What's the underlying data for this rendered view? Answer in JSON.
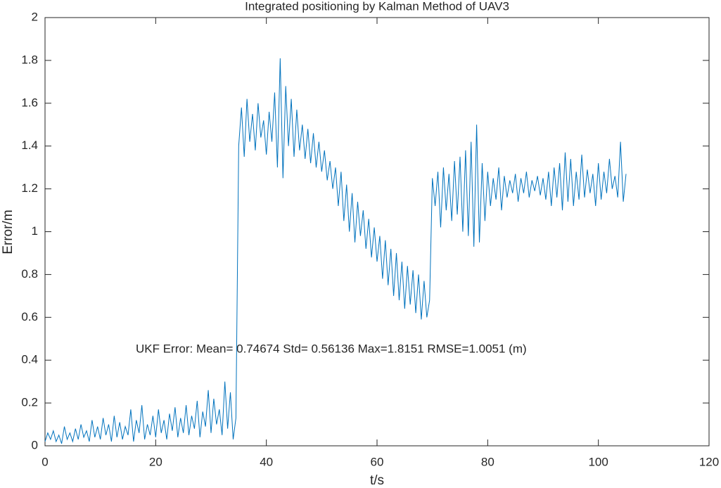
{
  "chart_data": {
    "type": "line",
    "title": "Integrated positioning by Kalman Method of UAV3",
    "xlabel": "t/s",
    "ylabel": "Error/m",
    "annotation": "UKF  Error: Mean= 0.74674 Std= 0.56136 Max=1.8151 RMSE=1.0051 (m)",
    "xlim": [
      0,
      120
    ],
    "ylim": [
      0,
      2
    ],
    "xticks": [
      0,
      20,
      40,
      60,
      80,
      100,
      120
    ],
    "yticks": [
      0,
      0.2,
      0.4,
      0.6,
      0.8,
      1,
      1.2,
      1.4,
      1.6,
      1.8,
      2
    ],
    "color": "#0072bd",
    "x": [
      0,
      0.5,
      1,
      1.5,
      2,
      2.5,
      3,
      3.5,
      4,
      4.5,
      5,
      5.5,
      6,
      6.5,
      7,
      7.5,
      8,
      8.5,
      9,
      9.5,
      10,
      10.5,
      11,
      11.5,
      12,
      12.5,
      13,
      13.5,
      14,
      14.5,
      15,
      15.5,
      16,
      16.5,
      17,
      17.5,
      18,
      18.5,
      19,
      19.5,
      20,
      20.5,
      21,
      21.5,
      22,
      22.5,
      23,
      23.5,
      24,
      24.5,
      25,
      25.5,
      26,
      26.5,
      27,
      27.5,
      28,
      28.5,
      29,
      29.5,
      30,
      30.5,
      31,
      31.5,
      32,
      32.5,
      33,
      33.5,
      34,
      34.5,
      35,
      35.5,
      36,
      36.5,
      37,
      37.5,
      38,
      38.5,
      39,
      39.5,
      40,
      40.5,
      41,
      41.5,
      42,
      42.5,
      43,
      43.5,
      44,
      44.5,
      45,
      45.5,
      46,
      46.5,
      47,
      47.5,
      48,
      48.5,
      49,
      49.5,
      50,
      50.5,
      51,
      51.5,
      52,
      52.5,
      53,
      53.5,
      54,
      54.5,
      55,
      55.5,
      56,
      56.5,
      57,
      57.5,
      58,
      58.5,
      59,
      59.5,
      60,
      60.5,
      61,
      61.5,
      62,
      62.5,
      63,
      63.5,
      64,
      64.5,
      65,
      65.5,
      66,
      66.5,
      67,
      67.5,
      68,
      68.5,
      69,
      69.5,
      70,
      70.5,
      71,
      71.5,
      72,
      72.5,
      73,
      73.5,
      74,
      74.5,
      75,
      75.5,
      76,
      76.5,
      77,
      77.5,
      78,
      78.5,
      79,
      79.5,
      80,
      80.5,
      81,
      81.5,
      82,
      82.5,
      83,
      83.5,
      84,
      84.5,
      85,
      85.5,
      86,
      86.5,
      87,
      87.5,
      88,
      88.5,
      89,
      89.5,
      90,
      90.5,
      91,
      91.5,
      92,
      92.5,
      93,
      93.5,
      94,
      94.5,
      95,
      95.5,
      96,
      96.5,
      97,
      97.5,
      98,
      98.5,
      99,
      99.5,
      100,
      100.5,
      101,
      101.5,
      102,
      102.5,
      103,
      103.5,
      104,
      104.5,
      105
    ],
    "values": [
      0.02,
      0.06,
      0.03,
      0.07,
      0.02,
      0.05,
      0.01,
      0.09,
      0.03,
      0.06,
      0.02,
      0.08,
      0.03,
      0.1,
      0.04,
      0.07,
      0.02,
      0.12,
      0.04,
      0.09,
      0.03,
      0.13,
      0.05,
      0.1,
      0.02,
      0.14,
      0.04,
      0.11,
      0.03,
      0.09,
      0.05,
      0.17,
      0.02,
      0.12,
      0.06,
      0.19,
      0.03,
      0.1,
      0.05,
      0.14,
      0.04,
      0.17,
      0.06,
      0.12,
      0.03,
      0.15,
      0.07,
      0.18,
      0.04,
      0.13,
      0.06,
      0.19,
      0.05,
      0.14,
      0.08,
      0.21,
      0.04,
      0.16,
      0.09,
      0.26,
      0.06,
      0.22,
      0.1,
      0.17,
      0.05,
      0.3,
      0.08,
      0.25,
      0.03,
      0.13,
      1.4,
      1.58,
      1.35,
      1.62,
      1.42,
      1.55,
      1.38,
      1.6,
      1.44,
      1.52,
      1.36,
      1.56,
      1.42,
      1.65,
      1.3,
      1.81,
      1.25,
      1.68,
      1.4,
      1.62,
      1.35,
      1.57,
      1.38,
      1.5,
      1.34,
      1.48,
      1.32,
      1.46,
      1.3,
      1.42,
      1.28,
      1.38,
      1.24,
      1.33,
      1.2,
      1.3,
      1.12,
      1.28,
      1.05,
      1.22,
      1.0,
      1.18,
      0.95,
      1.14,
      0.98,
      1.1,
      0.92,
      1.06,
      0.88,
      1.02,
      0.86,
      0.98,
      0.78,
      0.96,
      0.75,
      0.92,
      0.7,
      0.9,
      0.68,
      0.86,
      0.64,
      0.84,
      0.66,
      0.82,
      0.62,
      0.8,
      0.59,
      0.77,
      0.6,
      0.68,
      1.25,
      1.12,
      1.28,
      1.02,
      1.3,
      1.1,
      1.27,
      1.05,
      1.33,
      1.08,
      1.35,
      1.0,
      1.38,
      0.98,
      1.42,
      0.93,
      1.5,
      0.95,
      1.32,
      1.05,
      1.28,
      1.12,
      1.25,
      1.15,
      1.3,
      1.1,
      1.26,
      1.16,
      1.24,
      1.18,
      1.27,
      1.14,
      1.25,
      1.18,
      1.28,
      1.16,
      1.24,
      1.19,
      1.26,
      1.17,
      1.25,
      1.15,
      1.28,
      1.12,
      1.3,
      1.16,
      1.32,
      1.1,
      1.37,
      1.14,
      1.34,
      1.12,
      1.28,
      1.15,
      1.36,
      1.16,
      1.29,
      1.18,
      1.27,
      1.12,
      1.32,
      1.15,
      1.28,
      1.18,
      1.34,
      1.2,
      1.26,
      1.16,
      1.42,
      1.14,
      1.27
    ]
  }
}
